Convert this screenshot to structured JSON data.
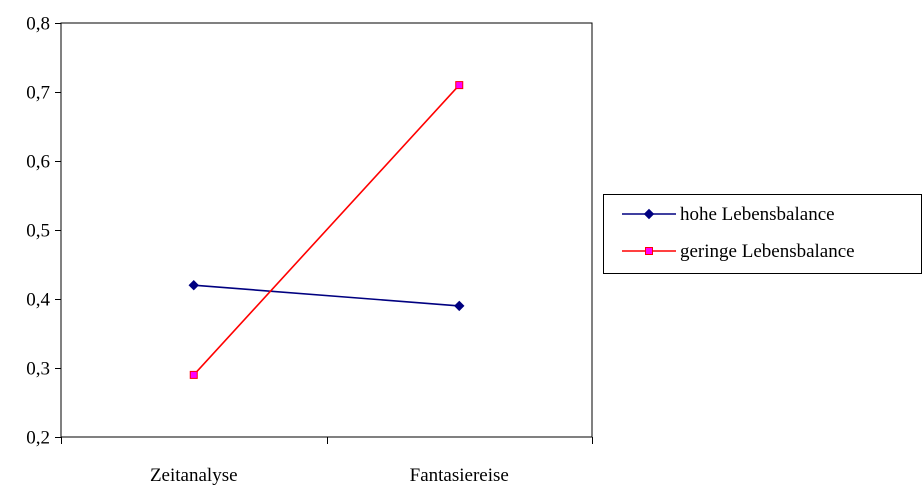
{
  "chart_data": {
    "type": "line",
    "title": "",
    "xlabel": "",
    "ylabel": "",
    "categories": [
      "Zeitanalyse",
      "Fantasiereise"
    ],
    "ylim": [
      0.2,
      0.8
    ],
    "yticks": [
      0.2,
      0.3,
      0.4,
      0.5,
      0.6,
      0.7,
      0.8
    ],
    "ytick_labels": [
      "0,2",
      "0,3",
      "0,4",
      "0,5",
      "0,6",
      "0,7",
      "0,8"
    ],
    "grid": false,
    "legend_position": "right",
    "series": [
      {
        "name": "hohe Lebensbalance",
        "values": [
          0.42,
          0.39
        ],
        "color": "#000080",
        "marker": "diamond"
      },
      {
        "name": "geringe Lebensbalance",
        "values": [
          0.29,
          0.71
        ],
        "color": "#ff0000",
        "marker": "square",
        "marker_color": "#ff00ff"
      }
    ]
  }
}
